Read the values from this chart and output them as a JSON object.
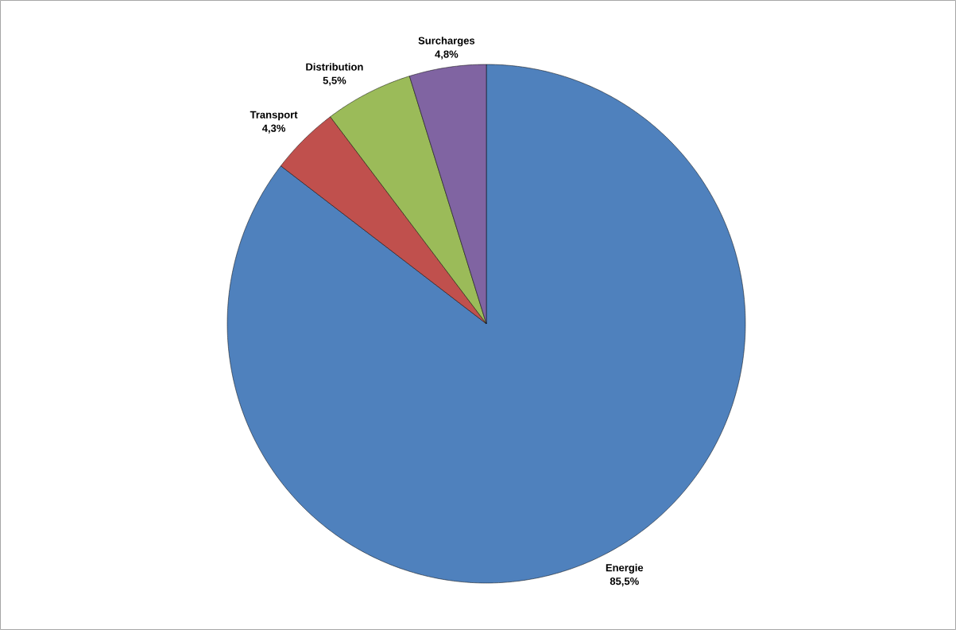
{
  "chart_data": {
    "type": "pie",
    "categories": [
      "Energie",
      "Transport",
      "Distribution",
      "Surcharges"
    ],
    "values": [
      85.5,
      4.3,
      5.5,
      4.8
    ],
    "value_labels": [
      "85,5%",
      "4,3%",
      "5,5%",
      "4,8%"
    ],
    "colors": [
      "#4f81bd",
      "#c0504d",
      "#9bbb59",
      "#8064a2"
    ]
  }
}
